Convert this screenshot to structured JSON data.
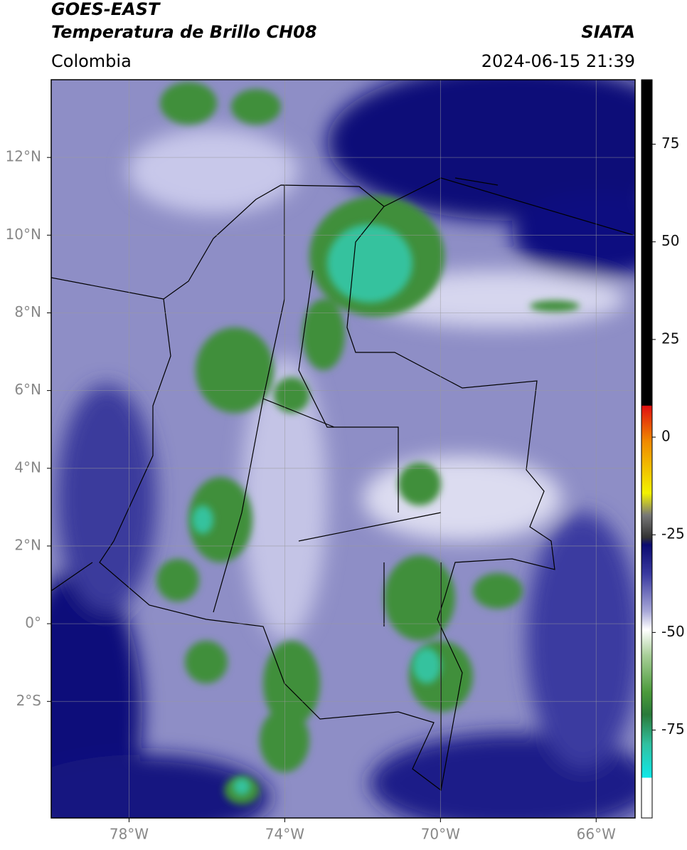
{
  "header": {
    "title": "GOES-EAST",
    "subtitle": "Temperatura de Brillo CH08",
    "source": "SIATA",
    "region": "Colombia",
    "timestamp": "2024-06-15 21:39"
  },
  "map": {
    "xlim": [
      -80,
      -65
    ],
    "ylim": [
      -5,
      14
    ],
    "xticks": [
      {
        "value": -78,
        "label": "78°W"
      },
      {
        "value": -74,
        "label": "74°W"
      },
      {
        "value": -70,
        "label": "70°W"
      },
      {
        "value": -66,
        "label": "66°W"
      }
    ],
    "yticks": [
      {
        "value": 12,
        "label": "12°N"
      },
      {
        "value": 10,
        "label": "10°N"
      },
      {
        "value": 8,
        "label": "8°N"
      },
      {
        "value": 6,
        "label": "6°N"
      },
      {
        "value": 4,
        "label": "4°N"
      },
      {
        "value": 2,
        "label": "2°N"
      },
      {
        "value": 0,
        "label": "0°"
      },
      {
        "value": -2,
        "label": "2°S"
      }
    ],
    "grid": true
  },
  "colorbar": {
    "lim": [
      -97.5,
      91.5
    ],
    "ticks": [
      75,
      50,
      25,
      0,
      -25,
      -50,
      -75
    ]
  }
}
